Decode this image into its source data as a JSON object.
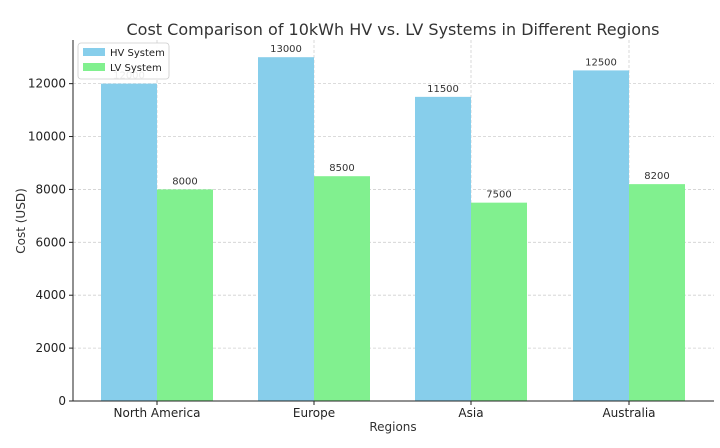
{
  "chart_data": {
    "type": "bar",
    "title": "Cost Comparison of 10kWh HV vs. LV Systems in Different Regions",
    "xlabel": "Regions",
    "ylabel": "Cost (USD)",
    "categories": [
      "North America",
      "Europe",
      "Asia",
      "Australia"
    ],
    "series": [
      {
        "name": "HV System",
        "color": "#87CEEB",
        "values": [
          12000,
          13000,
          11500,
          12500
        ]
      },
      {
        "name": "LV System",
        "color": "#81F08F",
        "values": [
          8000,
          8500,
          7500,
          8200
        ]
      }
    ],
    "ylim": [
      0,
      13650
    ],
    "yticks": [
      0,
      2000,
      4000,
      6000,
      8000,
      10000,
      12000
    ],
    "grid": true,
    "legend": "top-left"
  }
}
